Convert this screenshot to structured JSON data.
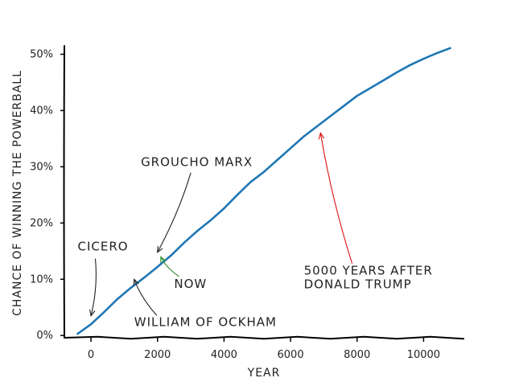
{
  "chart_data": {
    "type": "line",
    "xlabel": "YEAR",
    "ylabel": "CHANCE OF WINNING THE POWERBALL",
    "xlim": [
      -800,
      11200
    ],
    "ylim": [
      -0.4,
      51.5
    ],
    "xticks": [
      0,
      2000,
      4000,
      6000,
      8000,
      10000
    ],
    "xtick_labels": [
      "0",
      "2000",
      "4000",
      "6000",
      "8000",
      "10000"
    ],
    "yticks": [
      0,
      10,
      20,
      30,
      40,
      50
    ],
    "ytick_labels": [
      "0%",
      "10%",
      "20%",
      "30%",
      "40%",
      "50%"
    ],
    "grid": false,
    "series": [
      {
        "color": "#1f77b4",
        "points": [
          [
            -400,
            0.3
          ],
          [
            0,
            2.0
          ],
          [
            400,
            4.2
          ],
          [
            800,
            6.5
          ],
          [
            1200,
            8.5
          ],
          [
            1600,
            10.3
          ],
          [
            2000,
            12.2
          ],
          [
            2400,
            14.2
          ],
          [
            2800,
            16.5
          ],
          [
            3200,
            18.6
          ],
          [
            3600,
            20.5
          ],
          [
            4000,
            22.6
          ],
          [
            4400,
            25.0
          ],
          [
            4800,
            27.3
          ],
          [
            5200,
            29.1
          ],
          [
            5600,
            31.2
          ],
          [
            6000,
            33.3
          ],
          [
            6400,
            35.4
          ],
          [
            6800,
            37.2
          ],
          [
            7200,
            39.0
          ],
          [
            7600,
            40.8
          ],
          [
            8000,
            42.6
          ],
          [
            8400,
            44.0
          ],
          [
            8800,
            45.4
          ],
          [
            9200,
            46.8
          ],
          [
            9600,
            48.1
          ],
          [
            10000,
            49.2
          ],
          [
            10400,
            50.2
          ],
          [
            10800,
            51.1
          ]
        ]
      }
    ],
    "annotations": [
      {
        "lines": [
          "CICERO"
        ],
        "text_at": [
          -400,
          15.1
        ],
        "anchor": "start",
        "point": [
          0,
          3.5
        ],
        "color": "#222222"
      },
      {
        "lines": [
          "GROUCHO MARX"
        ],
        "text_at": [
          1500,
          30.1
        ],
        "anchor": "start",
        "point": [
          2000,
          14.8
        ],
        "color": "#222222"
      },
      {
        "lines": [
          "WILLIAM OF OCKHAM"
        ],
        "text_at": [
          1300,
          1.7
        ],
        "anchor": "start",
        "point": [
          1300,
          10.0
        ],
        "color": "#222222"
      },
      {
        "lines": [
          "NOW"
        ],
        "text_at": [
          2500,
          8.5
        ],
        "anchor": "start",
        "point": [
          2100,
          14.0
        ],
        "color": "#2a8a2a"
      },
      {
        "lines": [
          "5000 YEARS AFTER",
          "DONALD TRUMP"
        ],
        "text_at": [
          6400,
          10.8
        ],
        "anchor": "start",
        "point": [
          6900,
          36.0
        ],
        "color": "#dd1111"
      }
    ]
  }
}
